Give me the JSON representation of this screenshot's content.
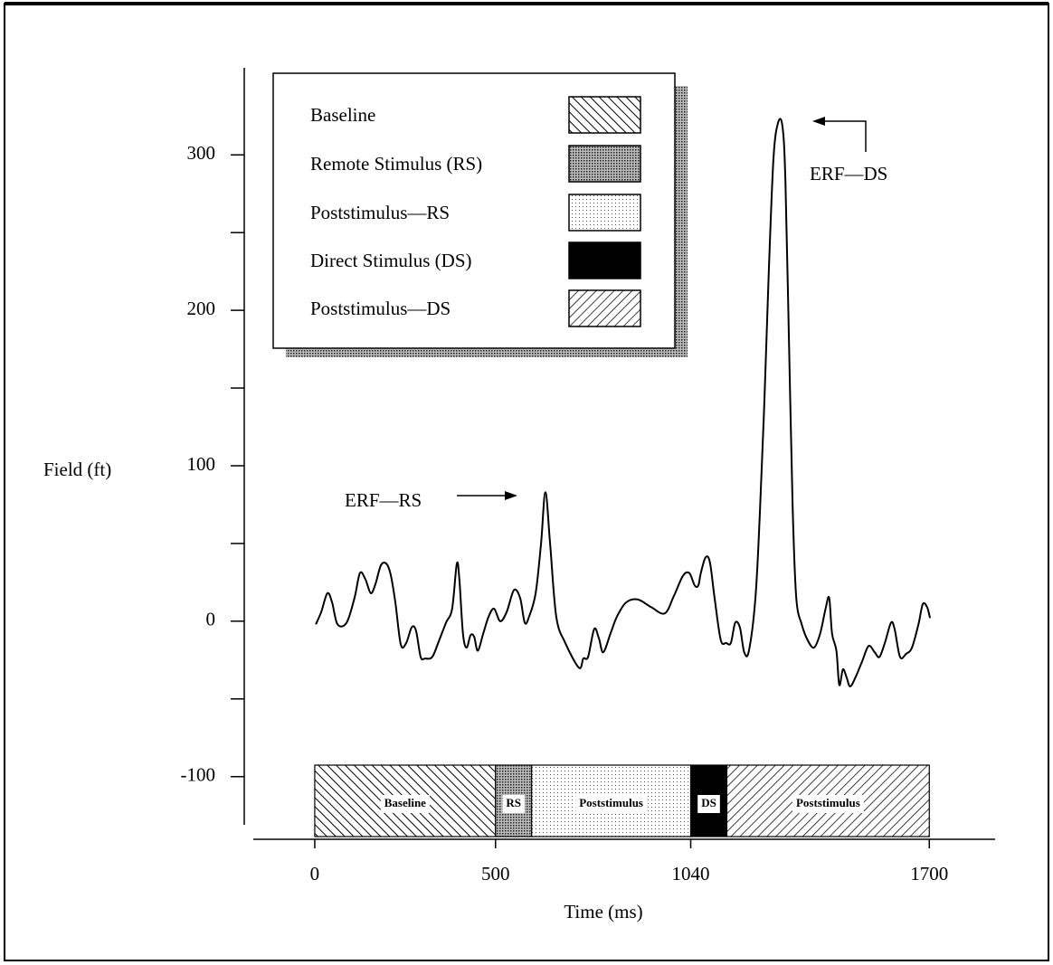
{
  "chart_data": {
    "type": "line",
    "y_label": "Field (ft)",
    "x_label": "Time (ms)",
    "xlim": [
      -170,
      1882
    ],
    "ylim": [
      -131,
      356
    ],
    "xticks": [
      0,
      500,
      1040,
      1700
    ],
    "yticks": [
      -100,
      0,
      100,
      200,
      300
    ],
    "yminorticks": [
      -50,
      50,
      150,
      250
    ],
    "x": [
      3,
      18,
      35,
      48,
      63,
      88,
      110,
      125,
      140,
      155,
      168,
      183,
      198,
      210,
      223,
      238,
      253,
      268,
      280,
      293,
      305,
      325,
      343,
      363,
      380,
      393,
      400,
      410,
      420,
      431,
      441,
      451,
      466,
      481,
      496,
      513,
      531,
      551,
      568,
      581,
      593,
      611,
      626,
      638,
      651,
      668,
      693,
      731,
      743,
      756,
      773,
      786,
      798,
      818,
      836,
      861,
      893,
      931,
      968,
      993,
      1018,
      1036,
      1051,
      1061,
      1068,
      1081,
      1093,
      1106,
      1123,
      1138,
      1151,
      1163,
      1176,
      1188,
      1201,
      1219,
      1231,
      1244,
      1256,
      1269,
      1282,
      1294,
      1302,
      1312,
      1322,
      1332,
      1347,
      1363,
      1381,
      1398,
      1413,
      1423,
      1431,
      1443,
      1451,
      1461,
      1471,
      1481,
      1496,
      1514,
      1532,
      1549,
      1562,
      1577,
      1594,
      1604,
      1619,
      1636,
      1652,
      1670,
      1682,
      1694,
      1702
    ],
    "series": [
      {
        "color": "#000000",
        "values": [
          -2,
          6,
          18,
          12,
          -2,
          -1,
          15,
          31,
          27,
          18,
          24,
          36,
          37,
          30,
          12,
          -15,
          -14,
          -4,
          -6,
          -23,
          -24,
          -23,
          -13,
          -1,
          8,
          37,
          27,
          -8,
          -17,
          -9,
          -10,
          -19,
          -8,
          3,
          8,
          0,
          6,
          20,
          15,
          -1,
          3,
          18,
          50,
          83,
          50,
          3,
          -14,
          -30,
          -24,
          -23,
          -5,
          -11,
          -20,
          -8,
          3,
          12,
          14,
          9,
          5,
          16,
          29,
          31,
          23,
          23,
          31,
          41,
          38,
          15,
          -12,
          -14,
          -14,
          -1,
          -4,
          -20,
          -19,
          15,
          68,
          143,
          225,
          298,
          321,
          318,
          283,
          178,
          73,
          15,
          -2,
          -12,
          -17,
          -8,
          8,
          15,
          -8,
          -19,
          -41,
          -31,
          -36,
          -42,
          -36,
          -26,
          -16,
          -20,
          -23,
          -14,
          -1,
          -5,
          -23,
          -21,
          -17,
          -2,
          11,
          9,
          2
        ]
      }
    ],
    "annotations": [
      "ERF—RS",
      "ERF—DS"
    ],
    "segments": [
      {
        "name": "Baseline",
        "label": "Baseline",
        "start": 0,
        "end": 500,
        "pattern": "hatch-back"
      },
      {
        "name": "Remote Stimulus (RS)",
        "label": "RS",
        "start": 500,
        "end": 600,
        "pattern": "stipple-dark"
      },
      {
        "name": "Poststimulus—RS",
        "label": "Poststimulus",
        "start": 600,
        "end": 1040,
        "pattern": "stipple-light"
      },
      {
        "name": "Direct Stimulus (DS)",
        "label": "DS",
        "start": 1040,
        "end": 1140,
        "pattern": "solid"
      },
      {
        "name": "Poststimulus—DS",
        "label": "Poststimulus",
        "start": 1140,
        "end": 1700,
        "pattern": "hatch-forward"
      }
    ]
  }
}
